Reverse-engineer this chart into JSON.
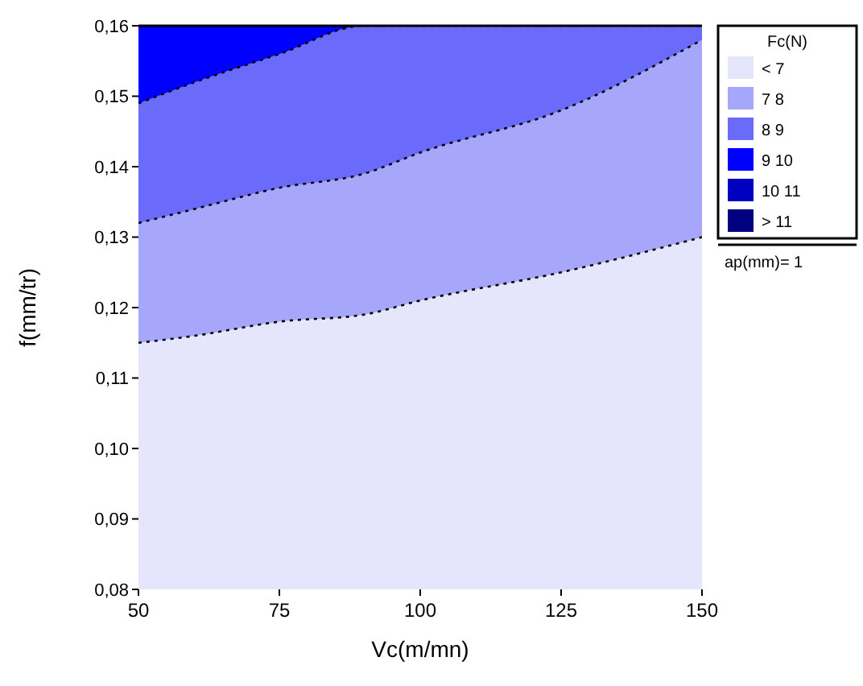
{
  "chart_data": {
    "type": "area",
    "xlabel": "Vc(m/mn)",
    "ylabel": "f(mm/tr)",
    "legend_title": "Fc(N)",
    "legend": "right",
    "line_style": "dotted",
    "grid": false,
    "x": [
      50,
      60,
      75,
      90,
      100,
      125,
      150
    ],
    "xlim": [
      50,
      150
    ],
    "xticks": [
      50,
      75,
      100,
      125,
      150
    ],
    "ylim": [
      0.08,
      0.16
    ],
    "yticks": [
      {
        "value": 0.08,
        "label": "0,08"
      },
      {
        "value": 0.09,
        "label": "0,09"
      },
      {
        "value": 0.1,
        "label": "0,10"
      },
      {
        "value": 0.11,
        "label": "0,11"
      },
      {
        "value": 0.12,
        "label": "0,12"
      },
      {
        "value": 0.13,
        "label": "0,13"
      },
      {
        "value": 0.14,
        "label": "0,14"
      },
      {
        "value": 0.15,
        "label": "0,15"
      },
      {
        "value": 0.16,
        "label": "0,16"
      }
    ],
    "series": [
      {
        "name": "< 7",
        "color": "#e5e5fc",
        "values": [
          0.115,
          0.116,
          0.118,
          0.119,
          0.121,
          0.125,
          0.13
        ]
      },
      {
        "name": "7 8",
        "color": "#a6a6fb",
        "values": [
          0.132,
          0.134,
          0.137,
          0.139,
          0.142,
          0.148,
          0.158
        ]
      },
      {
        "name": "8 9",
        "color": "#6a6afb",
        "values": [
          0.149,
          0.152,
          0.156,
          0.16,
          0.16,
          0.16,
          0.16
        ]
      },
      {
        "name": "9 10",
        "color": "#0000ff",
        "values": [
          0.16,
          0.16,
          0.16,
          0.16,
          null,
          null,
          null
        ]
      },
      {
        "name": "10 11",
        "color": "#0000c0",
        "values": [
          null,
          null,
          null,
          null,
          null,
          null,
          null
        ]
      },
      {
        "name": "> 11",
        "color": "#000080",
        "values": [
          null,
          null,
          null,
          null,
          null,
          null,
          null
        ]
      }
    ],
    "annotations": [
      "ap(mm)= 1"
    ]
  }
}
